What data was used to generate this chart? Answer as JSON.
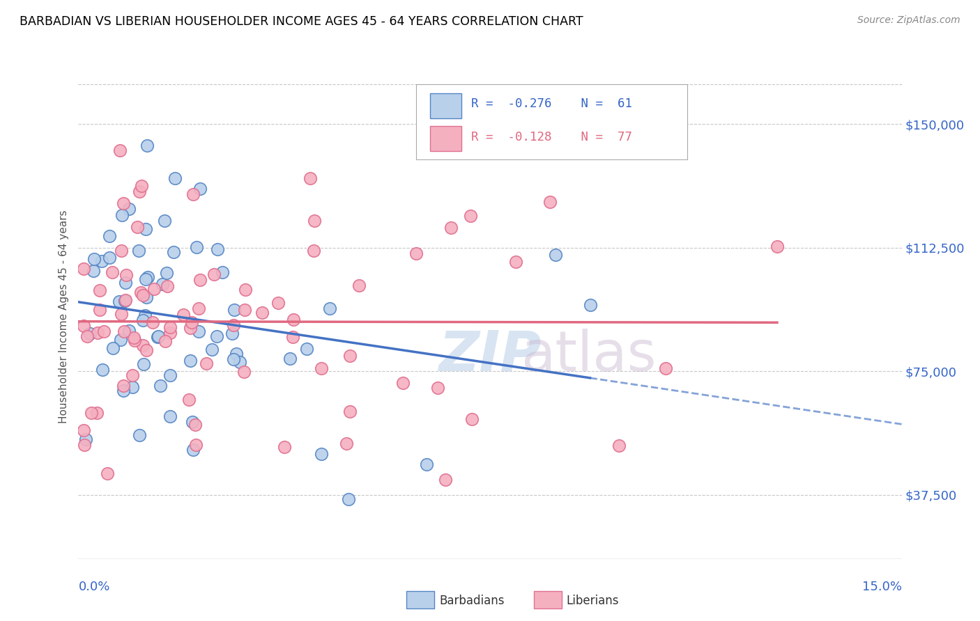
{
  "title": "BARBADIAN VS LIBERIAN HOUSEHOLDER INCOME AGES 45 - 64 YEARS CORRELATION CHART",
  "source": "Source: ZipAtlas.com",
  "ylabel": "Householder Income Ages 45 - 64 years",
  "xlim": [
    0.0,
    0.15
  ],
  "ylim": [
    18000,
    165000
  ],
  "watermark_zip": "ZIP",
  "watermark_atlas": "atlas",
  "legend_r1": "-0.276",
  "legend_n1": "61",
  "legend_r2": "-0.128",
  "legend_n2": "77",
  "color_barbadian_fill": "#b8d0ea",
  "color_liberian_fill": "#f5b0c0",
  "color_barbadian_edge": "#5585c5",
  "color_liberian_edge": "#e07090",
  "color_barbadian_line": "#4472c4",
  "color_liberian_line": "#e06880",
  "ytick_vals": [
    37500,
    75000,
    112500,
    150000
  ],
  "ytick_labels": [
    "$37,500",
    "$75,000",
    "$112,500",
    "$150,000"
  ]
}
